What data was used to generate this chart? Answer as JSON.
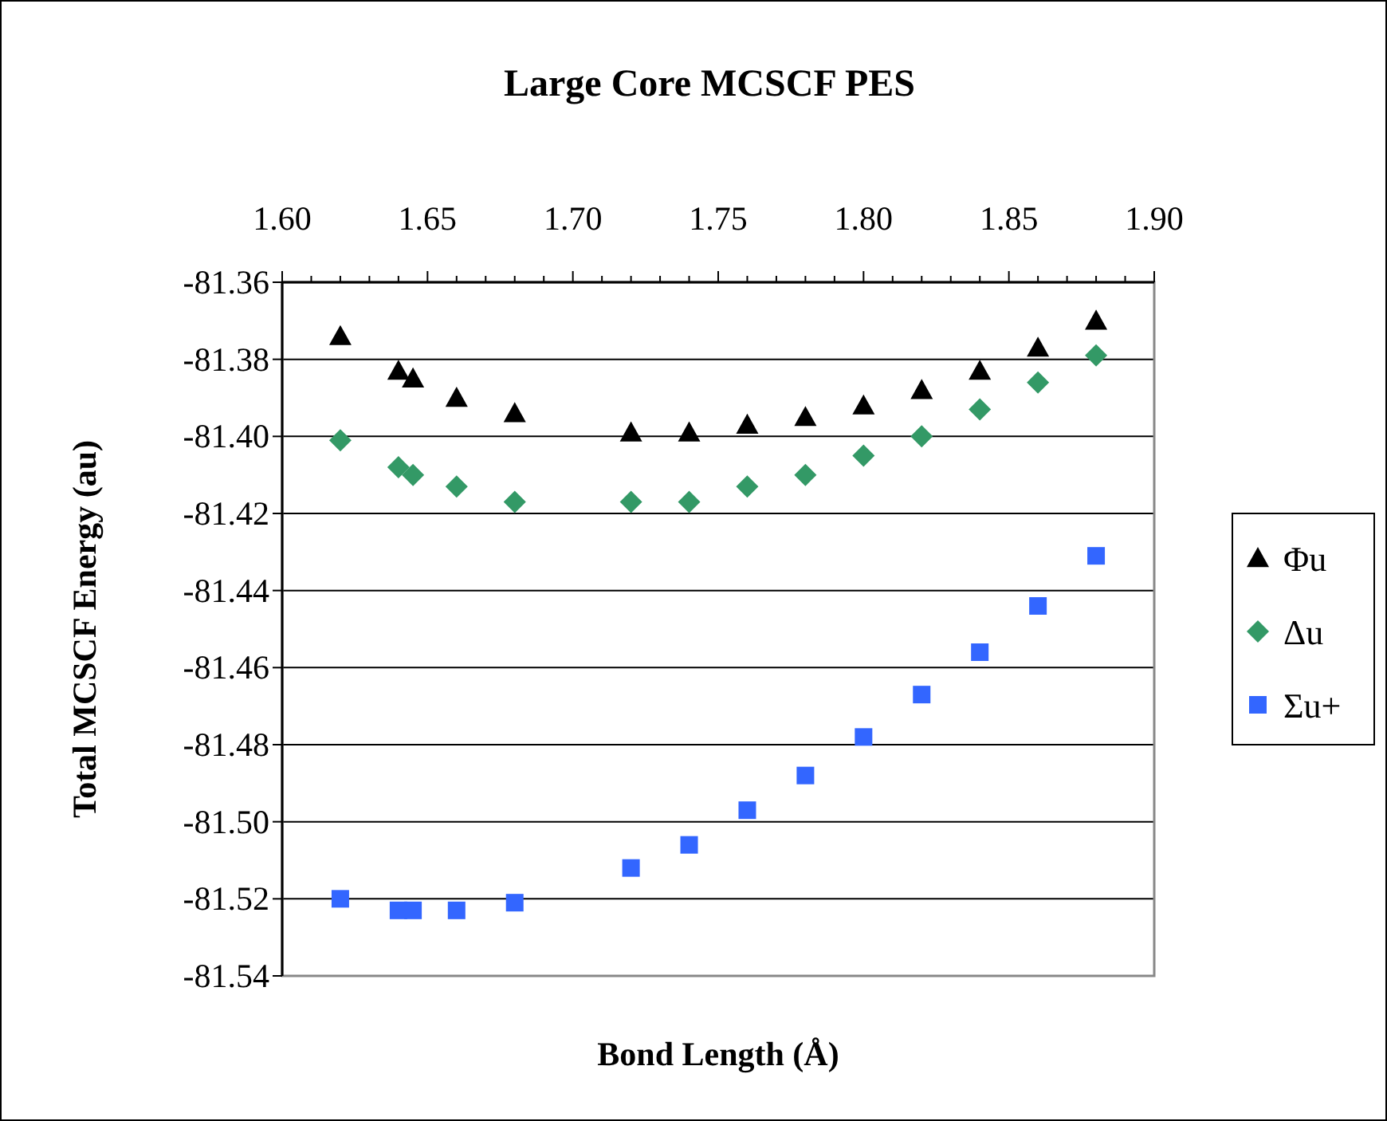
{
  "chart_data": {
    "type": "scatter",
    "title": "Large Core MCSCF PES",
    "xlabel": "Bond Length (Å)",
    "ylabel": "Total MCSCF Energy (au)",
    "x": [
      1.62,
      1.64,
      1.645,
      1.66,
      1.68,
      1.72,
      1.74,
      1.76,
      1.78,
      1.8,
      1.82,
      1.84,
      1.86,
      1.88
    ],
    "xlim": [
      1.6,
      1.9
    ],
    "xticks": [
      {
        "value": 1.6,
        "label": "1.60"
      },
      {
        "value": 1.65,
        "label": "1.65"
      },
      {
        "value": 1.7,
        "label": "1.70"
      },
      {
        "value": 1.75,
        "label": "1.75"
      },
      {
        "value": 1.8,
        "label": "1.80"
      },
      {
        "value": 1.85,
        "label": "1.85"
      },
      {
        "value": 1.9,
        "label": "1.90"
      }
    ],
    "ylim": [
      -81.54,
      -81.36
    ],
    "yticks": [
      {
        "value": -81.36,
        "label": "-81.36"
      },
      {
        "value": -81.38,
        "label": "-81.38"
      },
      {
        "value": -81.4,
        "label": "-81.40"
      },
      {
        "value": -81.42,
        "label": "-81.42"
      },
      {
        "value": -81.44,
        "label": "-81.44"
      },
      {
        "value": -81.46,
        "label": "-81.46"
      },
      {
        "value": -81.48,
        "label": "-81.48"
      },
      {
        "value": -81.5,
        "label": "-81.50"
      },
      {
        "value": -81.52,
        "label": "-81.52"
      },
      {
        "value": -81.54,
        "label": "-81.54"
      }
    ],
    "grid": "y",
    "legend": "right",
    "series": [
      {
        "name": "Φu",
        "color": "#000000",
        "marker": "triangle",
        "values": [
          -81.374,
          -81.383,
          -81.385,
          -81.39,
          -81.394,
          -81.399,
          -81.399,
          -81.397,
          -81.395,
          -81.392,
          -81.388,
          -81.383,
          -81.377,
          -81.37
        ]
      },
      {
        "name": "Δu",
        "color": "#339966",
        "marker": "diamond",
        "values": [
          -81.401,
          -81.408,
          -81.41,
          -81.413,
          -81.417,
          -81.417,
          -81.417,
          -81.413,
          -81.41,
          -81.405,
          -81.4,
          -81.393,
          -81.386,
          -81.379
        ]
      },
      {
        "name": "Σu+",
        "color": "#3366ff",
        "marker": "square",
        "values": [
          -81.52,
          -81.523,
          -81.523,
          -81.523,
          -81.521,
          -81.512,
          -81.506,
          -81.497,
          -81.488,
          -81.478,
          -81.467,
          -81.456,
          -81.444,
          -81.431
        ]
      }
    ]
  }
}
